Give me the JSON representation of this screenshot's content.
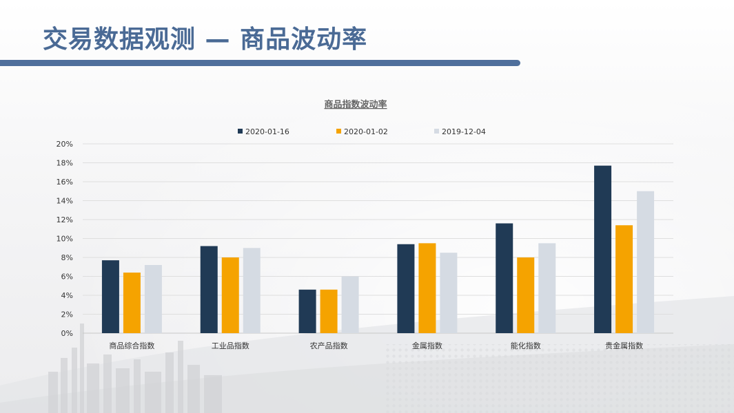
{
  "slide": {
    "title": "交易数据观测 — 商品波动率"
  },
  "chart_data": {
    "type": "bar",
    "title": "商品指数波动率",
    "categories": [
      "商品综合指数",
      "工业品指数",
      "农产品指数",
      "金属指数",
      "能化指数",
      "贵金属指数"
    ],
    "series": [
      {
        "name": "2020-01-16",
        "color": "#203a55",
        "values": [
          7.7,
          9.2,
          4.6,
          9.4,
          11.6,
          17.7
        ]
      },
      {
        "name": "2020-01-02",
        "color": "#f5a300",
        "values": [
          6.4,
          8.0,
          4.6,
          9.5,
          8.0,
          11.4
        ]
      },
      {
        "name": "2019-12-04",
        "color": "#d5dbe3",
        "values": [
          7.2,
          9.0,
          6.0,
          8.5,
          9.5,
          15.0
        ]
      }
    ],
    "ylim": [
      0,
      20
    ],
    "yticks": [
      "0%",
      "2%",
      "4%",
      "6%",
      "8%",
      "10%",
      "12%",
      "14%",
      "16%",
      "18%",
      "20%"
    ],
    "legend_position": "top",
    "grid": true
  }
}
